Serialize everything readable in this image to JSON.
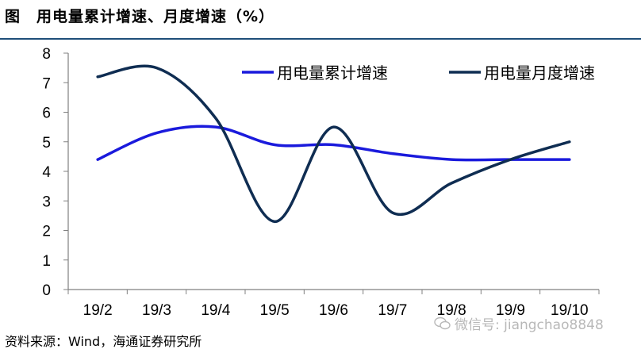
{
  "title": "图　用电量累计增速、月度增速（%）",
  "source": "资料来源：Wind，海通证券研究所",
  "watermark": "微信号: jiangchao8848",
  "colors": {
    "cumulative": "#1a1adc",
    "monthly": "#0f2d52",
    "rule": "#1f4e79",
    "axis": "#808080"
  },
  "chart_data": {
    "type": "line",
    "title": "",
    "xlabel": "",
    "ylabel": "",
    "categories": [
      "19/2",
      "19/3",
      "19/4",
      "19/5",
      "19/6",
      "19/7",
      "19/8",
      "19/9",
      "19/10"
    ],
    "ylim": [
      0,
      8
    ],
    "yticks": [
      0,
      1,
      2,
      3,
      4,
      5,
      6,
      7,
      8
    ],
    "grid": false,
    "legend": "top-right",
    "series": [
      {
        "name": "用电量累计增速",
        "values": [
          4.4,
          5.3,
          5.5,
          4.9,
          4.9,
          4.6,
          4.4,
          4.4,
          4.4
        ]
      },
      {
        "name": "用电量月度增速",
        "values": [
          7.2,
          7.5,
          5.8,
          2.3,
          5.5,
          2.6,
          3.6,
          4.4,
          5.0
        ]
      }
    ]
  }
}
